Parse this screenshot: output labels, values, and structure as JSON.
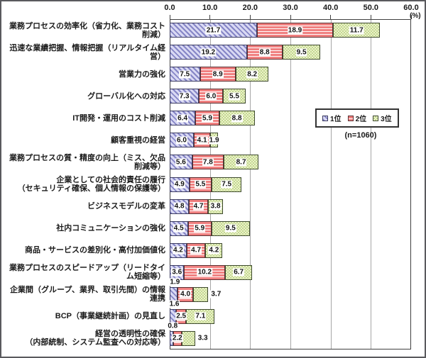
{
  "chart_data": {
    "type": "bar",
    "orientation": "horizontal",
    "stacked": true,
    "grid": true,
    "legend_position": "middle-right",
    "percent_unit": "(%)",
    "n_label": "(n=1060)",
    "xlim": [
      0,
      60
    ],
    "x_ticks": [
      "0.0",
      "10.0",
      "20.0",
      "30.0",
      "40.0",
      "50.0",
      "60.0"
    ],
    "series": [
      {
        "name": "1位",
        "pattern": "diagonal-stripes",
        "fill": "#d9d9f3",
        "accent": "#8585c6",
        "border": "#3c3c62"
      },
      {
        "name": "2位",
        "pattern": "horizontal-lines",
        "fill": "#f08080",
        "accent": "#ffffff",
        "border": "#5c3032"
      },
      {
        "name": "3位",
        "pattern": "checker-dots",
        "fill": "#ecf2c8",
        "accent": "#c3d894",
        "border": "#3e4a2e"
      }
    ],
    "rows": [
      {
        "category": [
          "業務プロセスの効率化（省力化、業務コスト削減）"
        ],
        "values": [
          21.7,
          18.9,
          11.7
        ],
        "label_pos": [
          "in",
          "in",
          "in"
        ]
      },
      {
        "category": [
          "迅速な業績把握、情報把握（リアルタイム経営）"
        ],
        "values": [
          19.2,
          8.8,
          9.5
        ],
        "label_pos": [
          "in",
          "in",
          "in"
        ]
      },
      {
        "category": [
          "営業力の強化"
        ],
        "values": [
          7.5,
          8.9,
          8.2
        ],
        "label_pos": [
          "in",
          "in",
          "in"
        ]
      },
      {
        "category": [
          "グローバル化への対応"
        ],
        "values": [
          7.3,
          6.0,
          5.5
        ],
        "label_pos": [
          "in",
          "in",
          "in"
        ]
      },
      {
        "category": [
          "IT開発・運用のコスト削減"
        ],
        "values": [
          6.4,
          5.9,
          8.8
        ],
        "label_pos": [
          "in",
          "in",
          "in"
        ]
      },
      {
        "category": [
          "顧客重視の経営"
        ],
        "values": [
          6.0,
          4.1,
          1.9
        ],
        "label_pos": [
          "in",
          "in",
          "in"
        ]
      },
      {
        "category": [
          "業務プロセスの質・精度の向上（ミス、欠品削減等）"
        ],
        "values": [
          5.6,
          7.8,
          8.7
        ],
        "label_pos": [
          "in",
          "in",
          "in"
        ]
      },
      {
        "category": [
          "企業としての社会的責任の履行",
          "（セキュリティ確保、個人情報の保護等）"
        ],
        "values": [
          4.9,
          5.5,
          7.5
        ],
        "label_pos": [
          "in",
          "in",
          "in"
        ]
      },
      {
        "category": [
          "ビジネスモデルの変革"
        ],
        "values": [
          4.8,
          4.7,
          3.8
        ],
        "label_pos": [
          "in",
          "in",
          "in"
        ]
      },
      {
        "category": [
          "社内コミュニケーションの強化"
        ],
        "values": [
          4.5,
          5.9,
          9.5
        ],
        "label_pos": [
          "in",
          "in",
          "in"
        ]
      },
      {
        "category": [
          "商品・サービスの差別化・高付加価値化"
        ],
        "values": [
          4.2,
          4.7,
          4.2
        ],
        "label_pos": [
          "in",
          "in",
          "in"
        ]
      },
      {
        "category": [
          "業務プロセスのスピードアップ（リードタイム短縮等）"
        ],
        "values": [
          3.6,
          10.2,
          6.7
        ],
        "label_pos": [
          "in",
          "in",
          "in"
        ]
      },
      {
        "category": [
          "企業間（グループ、業界、取引先間）の情報連携"
        ],
        "values": [
          1.9,
          4.0,
          3.7
        ],
        "label_pos": [
          "above",
          "in",
          "right"
        ]
      },
      {
        "category": [
          "BCP（事業継続計画）の見直し"
        ],
        "values": [
          1.6,
          2.5,
          7.1
        ],
        "label_pos": [
          "above",
          "in",
          "in"
        ]
      },
      {
        "category": [
          "経営の透明性の確保",
          "（内部統制、システム監査への対応等）"
        ],
        "values": [
          0.8,
          2.2,
          3.3
        ],
        "label_pos": [
          "above",
          "in",
          "right"
        ]
      }
    ]
  }
}
